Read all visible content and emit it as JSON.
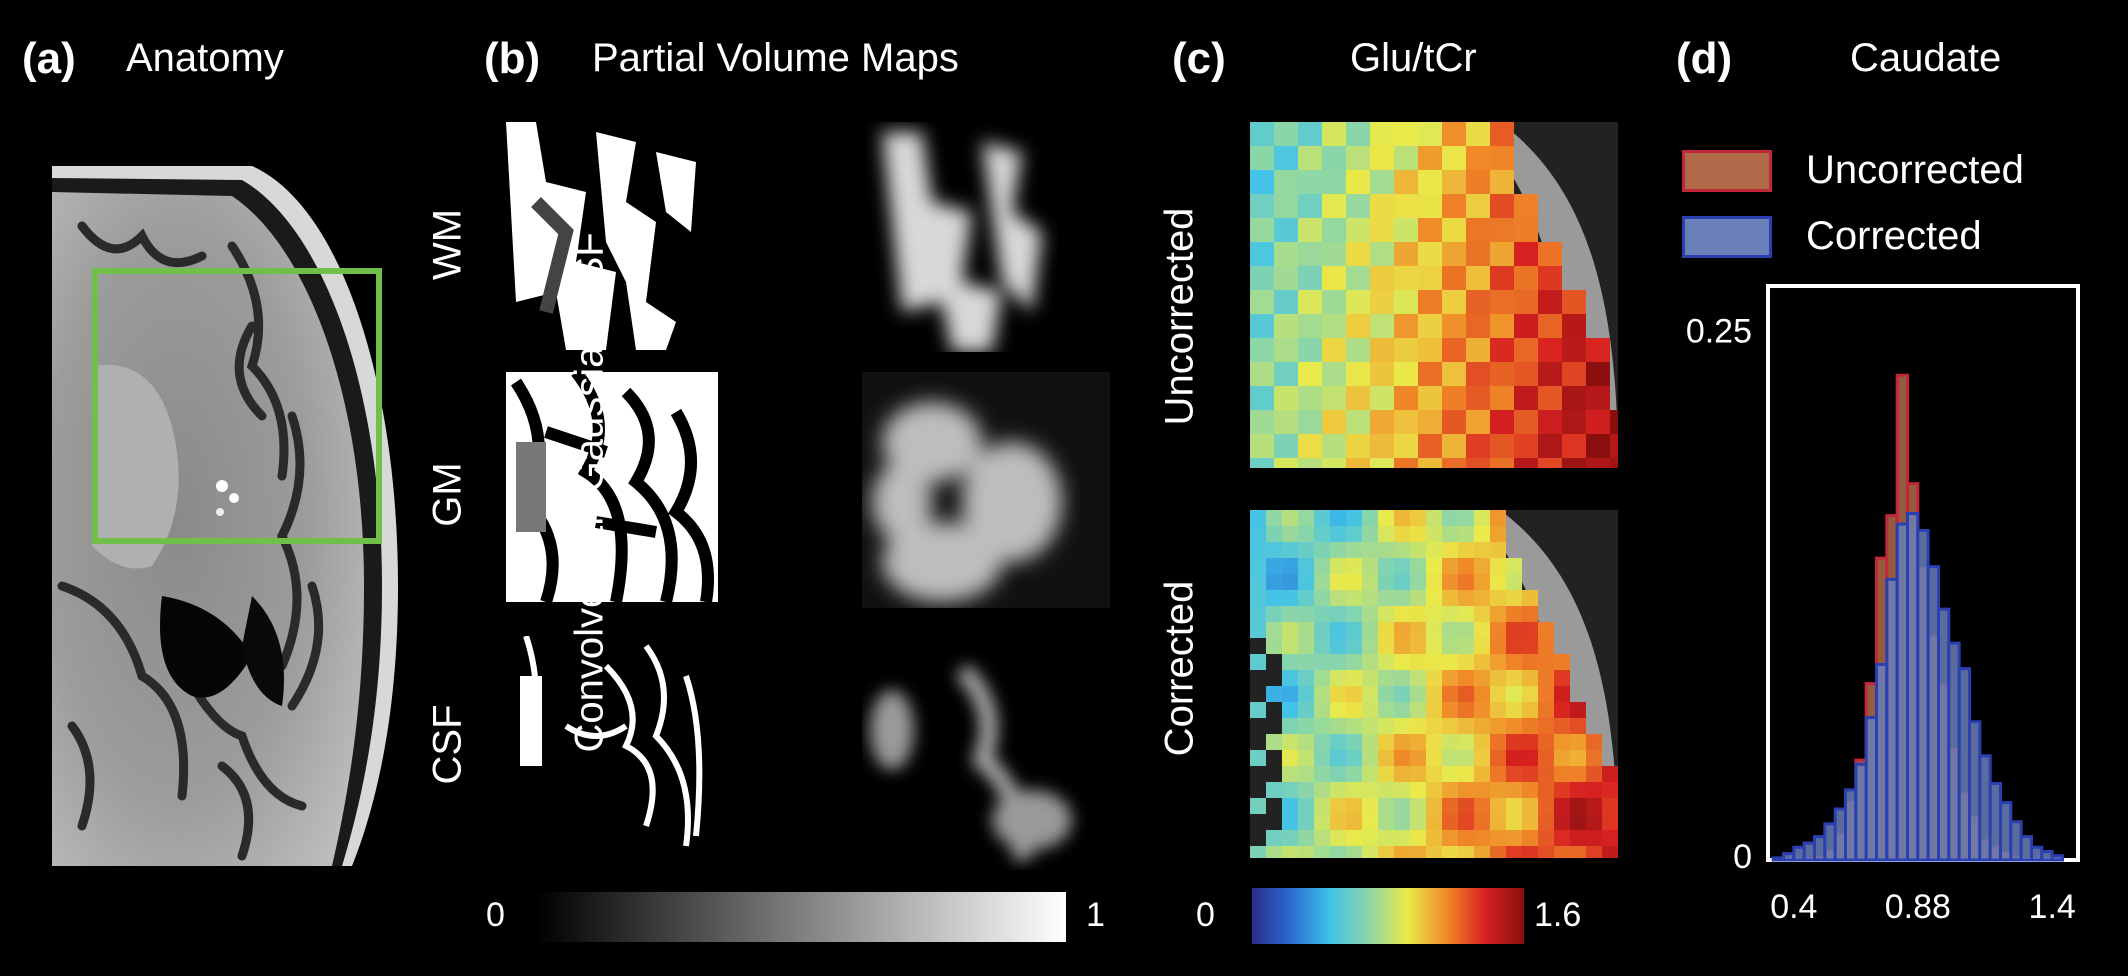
{
  "panels": {
    "a": {
      "tag": "(a)",
      "title": "Anatomy"
    },
    "b": {
      "tag": "(b)",
      "title": "Partial Volume Maps",
      "rows": [
        "WM",
        "GM",
        "CSF"
      ],
      "side_label": "Convolve with Gaussian-PSF",
      "colorbar": {
        "min": "0",
        "max": "1"
      }
    },
    "c": {
      "tag": "(c)",
      "title": "Glu/tCr",
      "rows": [
        "Uncorrected",
        "Corrected"
      ],
      "colorbar": {
        "min": "0",
        "max": "1.6"
      }
    },
    "d": {
      "tag": "(d)",
      "title": "Caudate"
    }
  },
  "colors": {
    "roi_box": "#6fbf4a",
    "uncorrected_fill": "#b06a4a",
    "uncorrected_edge": "#c0283a",
    "corrected_fill": "#6a7fb8",
    "corrected_edge": "#2a3fb0"
  },
  "chart_data": {
    "type": "bar",
    "title": "Caudate",
    "x_tick_labels": [
      "0.4",
      "0.88",
      "1.4"
    ],
    "x_ticks": [
      0.4,
      0.88,
      1.4
    ],
    "y_tick_labels": [
      "0",
      "0.25"
    ],
    "y_ticks": [
      0,
      0.25
    ],
    "xlim": [
      0.3,
      1.5
    ],
    "ylim": [
      0,
      0.27
    ],
    "bin_width": 0.04,
    "bin_centers": [
      0.34,
      0.38,
      0.42,
      0.46,
      0.5,
      0.54,
      0.58,
      0.62,
      0.66,
      0.7,
      0.74,
      0.78,
      0.82,
      0.86,
      0.9,
      0.94,
      0.98,
      1.02,
      1.06,
      1.1,
      1.14,
      1.18,
      1.22,
      1.26,
      1.3,
      1.34,
      1.38,
      1.42
    ],
    "legend_position": "top-left",
    "series": [
      {
        "name": "Uncorrected",
        "values": [
          0,
          0,
          0,
          0,
          0.001,
          0.004,
          0.012,
          0.027,
          0.047,
          0.083,
          0.142,
          0.162,
          0.228,
          0.177,
          0.137,
          0.105,
          0.082,
          0.052,
          0.031,
          0.02,
          0.009,
          0.006,
          0.003,
          0.001,
          0,
          0,
          0,
          0
        ]
      },
      {
        "name": "Corrected",
        "values": [
          0.001,
          0.003,
          0.006,
          0.008,
          0.011,
          0.017,
          0.024,
          0.033,
          0.045,
          0.067,
          0.092,
          0.132,
          0.158,
          0.163,
          0.155,
          0.138,
          0.118,
          0.102,
          0.09,
          0.065,
          0.049,
          0.036,
          0.027,
          0.018,
          0.011,
          0.006,
          0.004,
          0.002
        ]
      }
    ]
  }
}
